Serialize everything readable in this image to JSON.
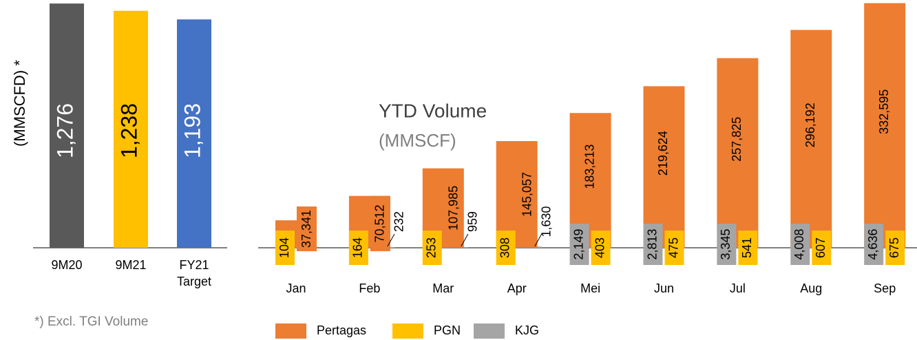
{
  "chart_data": [
    {
      "type": "bar",
      "ylabel": "(MMSCFD) *",
      "categories": [
        "9M20",
        "9M21",
        "FY21 Target"
      ],
      "values": [
        1276,
        1238,
        1193
      ],
      "value_labels": [
        "1,276",
        "1,238",
        "1,193"
      ],
      "colors": [
        "#595959",
        "#ffc000",
        "#4472c4"
      ],
      "ylim": [
        0,
        1280
      ]
    },
    {
      "type": "grouped_bar",
      "title": "YTD Volume",
      "subtitle": "(MMSCF)",
      "categories": [
        "Jan",
        "Feb",
        "Mar",
        "Apr",
        "Mei",
        "Jun",
        "Jul",
        "Aug",
        "Sep"
      ],
      "series": [
        {
          "name": "Pertagas",
          "color": "#ed7d31",
          "values": [
            37341,
            70512,
            107985,
            145057,
            183213,
            219624,
            257825,
            296192,
            332595
          ],
          "value_labels": [
            "37,341",
            "70,512",
            "107,985",
            "145,057",
            "183,213",
            "219,624",
            "257,825",
            "296,192",
            "332,595"
          ]
        },
        {
          "name": "PGN",
          "color": "#ffc000",
          "values": [
            104,
            164,
            253,
            308,
            403,
            475,
            541,
            607,
            675
          ]
        },
        {
          "name": "KJG",
          "color": "#a5a5a5",
          "values": [
            null,
            232,
            959,
            1630,
            2149,
            2813,
            3345,
            4008,
            4636
          ],
          "value_labels": [
            null,
            "232",
            "959",
            "1,630",
            "2,149",
            "2,813",
            "3,345",
            "4,008",
            "4,636"
          ]
        }
      ],
      "ylim": [
        0,
        335000
      ],
      "legend": "bottom"
    }
  ],
  "footnote": "*) Excl. TGI Volume"
}
